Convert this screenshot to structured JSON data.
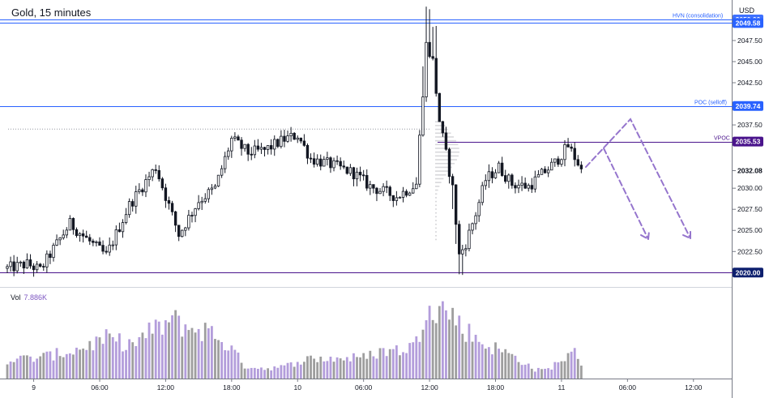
{
  "title": "Gold, 15 minutes",
  "currency": "USD",
  "volume": {
    "label": "Vol",
    "value": "7.886K"
  },
  "colors": {
    "candle": "#131722",
    "volume_up": "#b39ddb",
    "volume_down": "#9e9e9e",
    "level_blue": "#2962ff",
    "level_purple": "#4a148c",
    "arrow": "#9575cd",
    "label_dark": "#0d1f6e"
  },
  "chart_data": {
    "type": "candlestick",
    "y_range": [
      2018.3,
      2052.3
    ],
    "y_ticks": [
      "2047.50",
      "2045.00",
      "2042.50",
      "2037.50",
      "2032.08",
      "2030.00",
      "2027.50",
      "2025.00",
      "2022.50"
    ],
    "x_ticks": [
      "9",
      "06:00",
      "12:00",
      "18:00",
      "10",
      "06:00",
      "12:00",
      "18:00",
      "11",
      "06:00",
      "12:00"
    ],
    "levels": [
      {
        "name": "HVN (consolidation)",
        "value": 2050.0,
        "badge": "2050.00"
      },
      {
        "name": "",
        "value": 2049.58,
        "badge": "2049.58"
      },
      {
        "name": "POC (selloff)",
        "value": 2039.74,
        "badge": "2039.74"
      },
      {
        "name": "VPOC",
        "value": 2035.53,
        "badge": "2035.53"
      },
      {
        "name": "",
        "value": 2020.0,
        "badge": "2020.00"
      }
    ],
    "current_price": "2032.08",
    "price_path": [
      [
        0,
        2020.5
      ],
      [
        6,
        2021.0
      ],
      [
        10,
        2020.3
      ],
      [
        14,
        2022.8
      ],
      [
        19,
        2025.8
      ],
      [
        24,
        2024.0
      ],
      [
        30,
        2022.0
      ],
      [
        37,
        2028.0
      ],
      [
        45,
        2032.5
      ],
      [
        52,
        2024.5
      ],
      [
        58,
        2028.5
      ],
      [
        63,
        2030.0
      ],
      [
        68,
        2035.8
      ],
      [
        73,
        2034.2
      ],
      [
        78,
        2034.5
      ],
      [
        84,
        2035.8
      ],
      [
        88,
        2036.3
      ],
      [
        92,
        2033.5
      ],
      [
        98,
        2032.8
      ],
      [
        105,
        2031.8
      ],
      [
        110,
        2030.2
      ],
      [
        118,
        2029.0
      ],
      [
        124,
        2030.5
      ],
      [
        127,
        2047.0
      ],
      [
        129,
        2045.0
      ],
      [
        131,
        2038.0
      ],
      [
        133,
        2034.0
      ],
      [
        135,
        2030.0
      ],
      [
        137,
        2022.0
      ],
      [
        139,
        2023.5
      ],
      [
        142,
        2027.0
      ],
      [
        145,
        2031.0
      ],
      [
        149,
        2032.5
      ],
      [
        153,
        2030.5
      ],
      [
        158,
        2030.2
      ],
      [
        163,
        2032.0
      ],
      [
        166,
        2033.0
      ],
      [
        170,
        2035.0
      ],
      [
        173,
        2033.0
      ],
      [
        174,
        2032.1
      ]
    ],
    "volume_path": [
      [
        0,
        2200
      ],
      [
        10,
        2500
      ],
      [
        20,
        3300
      ],
      [
        30,
        4700
      ],
      [
        38,
        4000
      ],
      [
        42,
        5200
      ],
      [
        50,
        6900
      ],
      [
        55,
        6000
      ],
      [
        62,
        5500
      ],
      [
        68,
        3500
      ],
      [
        72,
        1500
      ],
      [
        78,
        1200
      ],
      [
        84,
        1400
      ],
      [
        90,
        2300
      ],
      [
        100,
        2400
      ],
      [
        108,
        2500
      ],
      [
        114,
        3300
      ],
      [
        120,
        3400
      ],
      [
        124,
        4200
      ],
      [
        128,
        10100
      ],
      [
        130,
        8400
      ],
      [
        134,
        8000
      ],
      [
        138,
        6000
      ],
      [
        145,
        4000
      ],
      [
        150,
        3300
      ],
      [
        156,
        2100
      ],
      [
        160,
        1000
      ],
      [
        164,
        1100
      ],
      [
        168,
        2300
      ],
      [
        172,
        3000
      ],
      [
        174,
        1900
      ]
    ]
  }
}
